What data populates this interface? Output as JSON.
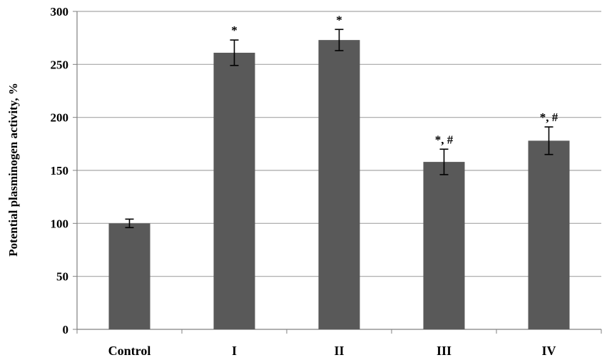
{
  "chart_data": {
    "type": "bar",
    "categories": [
      "Control",
      "I",
      "II",
      "III",
      "IV"
    ],
    "values": [
      100,
      261,
      273,
      158,
      178
    ],
    "errors": [
      4,
      12,
      10,
      12,
      13
    ],
    "annotations": [
      "",
      "*",
      "*",
      "*, #",
      "*, #"
    ],
    "title": "",
    "xlabel": "",
    "ylabel": "Potential plasminogen activity, %",
    "ylim": [
      0,
      300
    ],
    "yticks": [
      0,
      50,
      100,
      150,
      200,
      250,
      300
    ],
    "grid": true,
    "bar_color": "#595959",
    "grid_color": "#a6a6a6"
  }
}
